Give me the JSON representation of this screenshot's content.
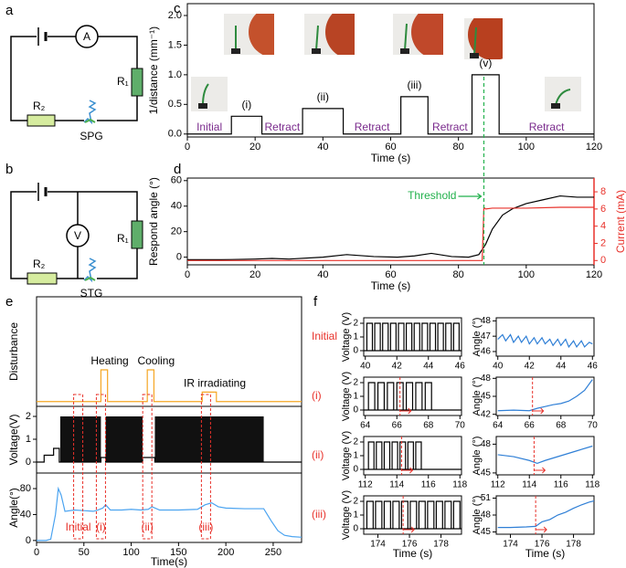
{
  "panel_labels": [
    "a",
    "b",
    "c",
    "d",
    "e",
    "f"
  ],
  "circuits": [
    {
      "meter": "A",
      "r1": "R₁",
      "r2": "R₂",
      "device": "SPG"
    },
    {
      "meter": "V",
      "r1": "R₁",
      "r2": "R₂",
      "device": "STG"
    }
  ],
  "chart_data": [
    {
      "type": "line",
      "x_label": "Time (s)",
      "y_label": "1/distance (mm⁻¹)",
      "xlim": [
        0,
        120
      ],
      "xticks": [
        0,
        20,
        40,
        60,
        80,
        100,
        120
      ],
      "ylim": [
        -0.05,
        2.2
      ],
      "yticks": [
        {
          "value": 0,
          "label": "0.0"
        },
        {
          "value": 0.5,
          "label": "0.5"
        },
        {
          "value": 1,
          "label": "1.0"
        },
        {
          "value": 1.5,
          "label": "1.5"
        },
        {
          "value": 2,
          "label": "2.0"
        }
      ],
      "series": [
        {
          "color": "#000000",
          "x": [
            0,
            13,
            13,
            22,
            22,
            34,
            34,
            46,
            46,
            63,
            63,
            71,
            71,
            84,
            84,
            92,
            92,
            120
          ],
          "values": [
            0,
            0,
            0.3,
            0.3,
            0,
            0,
            0.43,
            0.43,
            0,
            0,
            0.63,
            0.63,
            0,
            0,
            1.0,
            1.0,
            0,
            0
          ]
        }
      ],
      "stage_labels": [
        "(i)",
        "(ii)",
        "(iii)",
        "(v)"
      ],
      "phase_labels": [
        "Initial",
        "Retract",
        "Retract",
        "Retract",
        "Retract"
      ],
      "phase_color": "#7a2a8c"
    },
    {
      "type": "line",
      "x_label": "Time (s)",
      "y_label": "Respond angle (°)",
      "y2_label": "Current (mA)",
      "y2_color": "#e8312a",
      "xlim": [
        0,
        120
      ],
      "xticks": [
        0,
        20,
        40,
        60,
        80,
        100,
        120
      ],
      "ylim": [
        -6,
        62
      ],
      "yticks": [
        0,
        20,
        40,
        60
      ],
      "y2lim": [
        -0.5,
        9.6
      ],
      "y2ticks": [
        0,
        2,
        4,
        6,
        8
      ],
      "series": [
        {
          "color": "#000000",
          "x": [
            0,
            10,
            20,
            25,
            30,
            40,
            47,
            55,
            62,
            67,
            72,
            78,
            83,
            86,
            88,
            90,
            93,
            96,
            100,
            105,
            110,
            115,
            120
          ],
          "values": [
            -2,
            -2,
            -1.5,
            -1,
            -1.5,
            0,
            2,
            0.5,
            0,
            1,
            3,
            0.5,
            0,
            2,
            10,
            22,
            33,
            38,
            42,
            45,
            48,
            47,
            47
          ]
        },
        {
          "color": "#e8312a",
          "axis": "y2",
          "x": [
            0,
            87,
            87.5,
            88,
            90,
            100,
            110,
            120
          ],
          "values": [
            0,
            0,
            6.2,
            6.0,
            6.1,
            6.1,
            6.2,
            6.2
          ]
        }
      ],
      "threshold": {
        "label": "Threshold",
        "x": 87.5,
        "color": "#22b14c"
      }
    },
    {
      "type": "line",
      "y_label": "Disturbance",
      "xlim": [
        0,
        280
      ],
      "ylim": [
        -0.15,
        3.3
      ],
      "series": [
        {
          "color": "#f5a623",
          "x": [
            0,
            68,
            68,
            75,
            75,
            117,
            117,
            124,
            124,
            175,
            175,
            190,
            190,
            280
          ],
          "values": [
            0,
            0,
            1,
            1,
            0,
            0,
            1,
            1,
            0,
            0,
            0.3,
            0.3,
            0,
            0
          ]
        }
      ],
      "annotations": [
        "Heating",
        "Cooling",
        "IR irradiating"
      ]
    },
    {
      "type": "line",
      "y_label": "Voltage(V)",
      "xlim": [
        0,
        280
      ],
      "ylim": [
        -0.48,
        2.44
      ],
      "yticks": [
        0,
        1,
        2
      ],
      "series": [
        {
          "color": "#000000",
          "x": [
            0,
            8,
            8,
            18,
            18,
            24,
            24,
            68,
            68,
            73,
            73,
            112,
            112,
            125,
            125,
            240,
            240,
            280
          ],
          "values": [
            0,
            0,
            0.3,
            0.3,
            0.6,
            0.6,
            0,
            0,
            0.2,
            0.2,
            0,
            0,
            0.2,
            0.2,
            0,
            0,
            0,
            0
          ]
        }
      ],
      "bands": [
        {
          "start": 25,
          "end": 68,
          "low": 0,
          "high": 2
        },
        {
          "start": 73,
          "end": 112,
          "low": 0,
          "high": 2
        },
        {
          "start": 125,
          "end": 240,
          "low": 0,
          "high": 2
        }
      ]
    },
    {
      "type": "line",
      "x_label": "Time(s)",
      "y_label": "Angle(°)",
      "xlim": [
        0,
        280
      ],
      "xticks": [
        0,
        50,
        100,
        150,
        200,
        250
      ],
      "ylim": [
        -3,
        104
      ],
      "yticks": [
        0,
        40,
        80
      ],
      "series": [
        {
          "color": "#4aa3f0",
          "x": [
            0,
            10,
            15,
            20,
            23,
            26,
            30,
            40,
            50,
            60,
            65,
            70,
            73,
            78,
            90,
            100,
            110,
            118,
            122,
            130,
            150,
            170,
            178,
            185,
            192,
            200,
            220,
            240,
            248,
            255,
            262,
            270,
            280
          ],
          "values": [
            0,
            0,
            2,
            40,
            80,
            70,
            45,
            47,
            46,
            45,
            47,
            50,
            55,
            47,
            47,
            48,
            47,
            48,
            52,
            47,
            47,
            48,
            55,
            58,
            52,
            50,
            49,
            49,
            30,
            15,
            8,
            6,
            5
          ]
        }
      ],
      "markers": [
        {
          "label": "Initial",
          "x": 44
        },
        {
          "label": "(i)",
          "x": 68
        },
        {
          "label": "(ii)",
          "x": 117
        },
        {
          "label": "(iii)",
          "x": 179
        }
      ],
      "marker_color": "#e8312a"
    },
    {
      "type": "pulse",
      "row_label": "Initial",
      "row_label_color": "#e8312a",
      "y_label": "Voltage (V)",
      "xlim": [
        39.9,
        46.1
      ],
      "xticks": [
        40,
        42,
        44,
        46
      ],
      "ylim": [
        -0.4,
        2.4
      ],
      "yticks": [
        0,
        1,
        2
      ],
      "color": "#000000",
      "low": 0,
      "high": 2,
      "pulse_width": 0.35,
      "pulse_starts": [
        40.1,
        40.6,
        41.1,
        41.6,
        42.1,
        42.6,
        43.1,
        43.6,
        44.1,
        44.6,
        45.1,
        45.6
      ]
    },
    {
      "type": "line",
      "y_label": "Angle (°)",
      "xlim": [
        39.9,
        46.1
      ],
      "xticks": [
        40,
        42,
        44,
        46
      ],
      "ylim": [
        45.7,
        48.2
      ],
      "yticks": [
        46,
        47,
        48
      ],
      "series": [
        {
          "color": "#2f7fd6",
          "x": [
            40,
            40.3,
            40.5,
            40.8,
            41,
            41.3,
            41.5,
            41.8,
            42,
            42.3,
            42.5,
            42.8,
            43,
            43.3,
            43.5,
            43.8,
            44,
            44.3,
            44.5,
            44.8,
            45,
            45.3,
            45.5,
            45.8,
            46
          ],
          "values": [
            46.8,
            47.1,
            46.7,
            47.1,
            46.6,
            47.0,
            46.6,
            47.0,
            46.5,
            46.9,
            46.5,
            46.9,
            46.5,
            46.8,
            46.4,
            46.8,
            46.4,
            46.8,
            46.3,
            46.7,
            46.3,
            46.7,
            46.3,
            46.6,
            46.5
          ]
        }
      ]
    },
    {
      "type": "pulse",
      "row_label": "(i)",
      "row_label_color": "#e8312a",
      "y_label": "Voltage (V)",
      "xlim": [
        63.9,
        70.1
      ],
      "xticks": [
        64,
        66,
        68,
        70
      ],
      "ylim": [
        -0.4,
        2.4
      ],
      "yticks": [
        0,
        1,
        2
      ],
      "color": "#000000",
      "low": 0,
      "high": 2,
      "pulse_width": 0.4,
      "pulse_starts": [
        64.2,
        64.8,
        65.4,
        66.0,
        66.6,
        67.2,
        67.8
      ],
      "marker_x": 66.2,
      "marker_color": "#e8312a"
    },
    {
      "type": "line",
      "y_label": "Angle (°)",
      "xlim": [
        63.9,
        70.1
      ],
      "xticks": [
        64,
        66,
        68,
        70
      ],
      "ylim": [
        41.8,
        48.2
      ],
      "yticks": [
        42,
        45,
        48
      ],
      "series": [
        {
          "color": "#2f7fd6",
          "x": [
            64,
            65,
            66,
            66.5,
            67,
            67.5,
            68,
            68.5,
            69,
            69.5,
            70
          ],
          "values": [
            42.6,
            42.7,
            42.6,
            43.0,
            43.3,
            43.6,
            43.8,
            44.2,
            45,
            46,
            47.8
          ]
        }
      ],
      "marker_x": 66.2,
      "marker_color": "#e8312a"
    },
    {
      "type": "pulse",
      "row_label": "(ii)",
      "row_label_color": "#e8312a",
      "y_label": "Voltage (V)",
      "xlim": [
        111.9,
        118.1
      ],
      "xticks": [
        112,
        114,
        116,
        118
      ],
      "ylim": [
        -0.4,
        2.4
      ],
      "yticks": [
        0,
        1,
        2
      ],
      "color": "#000000",
      "low": 0,
      "high": 2,
      "pulse_width": 0.35,
      "pulse_starts": [
        112.2,
        112.7,
        113.2,
        113.7,
        114.2,
        114.7,
        115.2
      ],
      "marker_x": 114.3,
      "marker_color": "#e8312a"
    },
    {
      "type": "line",
      "y_label": "Angle (°)",
      "xlim": [
        111.9,
        118.1
      ],
      "xticks": [
        112,
        114,
        116,
        118
      ],
      "ylim": [
        44.8,
        48.8
      ],
      "yticks": [
        45,
        48
      ],
      "series": [
        {
          "color": "#2f7fd6",
          "x": [
            112,
            113,
            114,
            114.5,
            115,
            116,
            117,
            118
          ],
          "values": [
            46.9,
            46.7,
            46.3,
            46.0,
            46.3,
            46.8,
            47.3,
            47.8
          ]
        }
      ],
      "marker_x": 114.3,
      "marker_color": "#e8312a"
    },
    {
      "type": "pulse",
      "row_label": "(iii)",
      "row_label_color": "#e8312a",
      "x_label": "Time (s)",
      "y_label": "Voltage (V)",
      "xlim": [
        173.1,
        179.3
      ],
      "xticks": [
        174,
        176,
        178
      ],
      "ylim": [
        -0.4,
        2.4
      ],
      "yticks": [
        0,
        1,
        2
      ],
      "color": "#000000",
      "low": 0,
      "high": 2,
      "pulse_width": 0.4,
      "pulse_starts": [
        173.3,
        173.85,
        174.4,
        174.95,
        175.5,
        176.05,
        176.6,
        177.15,
        177.7,
        178.25,
        178.8
      ],
      "marker_x": 175.6,
      "marker_color": "#e8312a"
    },
    {
      "type": "line",
      "x_label": "Time (s)",
      "y_label": "Angle (°)",
      "xlim": [
        173.1,
        179.3
      ],
      "xticks": [
        174,
        176,
        178
      ],
      "ylim": [
        44.6,
        51.4
      ],
      "yticks": [
        45,
        48,
        51
      ],
      "series": [
        {
          "color": "#2f7fd6",
          "x": [
            173.2,
            174,
            175,
            175.6,
            176,
            176.5,
            177,
            177.5,
            178,
            178.5,
            179,
            179.3
          ],
          "values": [
            45.8,
            45.8,
            45.9,
            46.0,
            46.8,
            47.2,
            48,
            48.5,
            49.2,
            49.8,
            50.3,
            50.5
          ]
        }
      ],
      "marker_x": 175.6,
      "marker_color": "#e8312a"
    }
  ]
}
